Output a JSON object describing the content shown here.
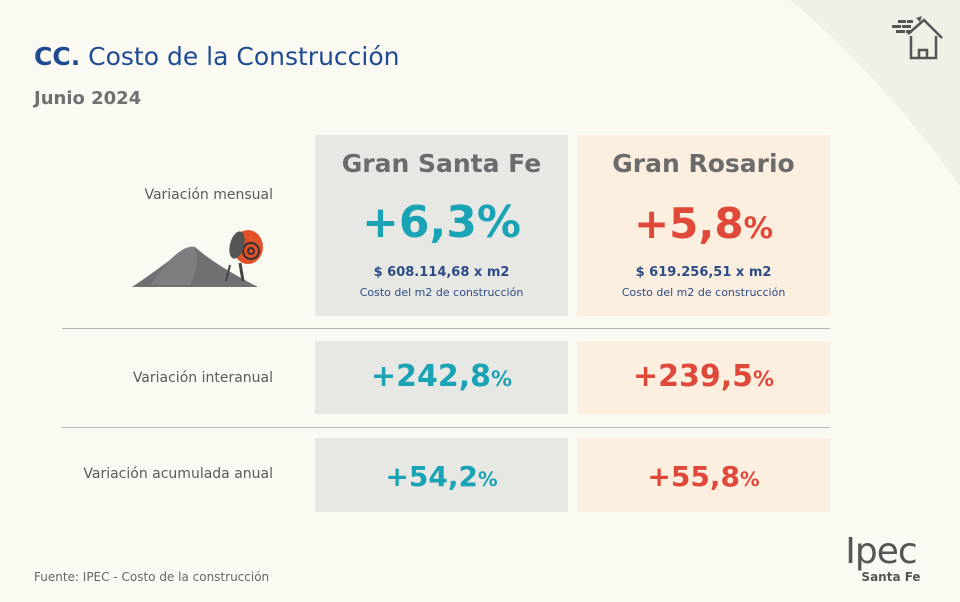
{
  "header": {
    "title_abbr": "CC.",
    "title": "Costo de la Construcción",
    "period": "Junio 2024",
    "icon": "house-brick-icon"
  },
  "columns": [
    {
      "name": "Gran Santa Fe",
      "color": "#1aa3b5"
    },
    {
      "name": "Gran Rosario",
      "color": "#e0483a"
    }
  ],
  "rows": [
    {
      "label": "Variación mensual",
      "santa_fe": "+6,3",
      "rosario": "+5,8",
      "unit": "%"
    },
    {
      "label": "Variación interanual",
      "santa_fe": "+242,8",
      "rosario": "+239,5",
      "unit": "%"
    },
    {
      "label": "Variación acumulada anual",
      "santa_fe": "+54,2",
      "rosario": "+55,8",
      "unit": "%"
    }
  ],
  "costs": {
    "santa_fe": "$ 608.114,68 x m2",
    "rosario": "$ 619.256,51 x m2",
    "caption": "Costo del m2 de construcción"
  },
  "footer": {
    "source": "Fuente: IPEC - Costo de la construcción",
    "logo": "Ipec",
    "logo_sub": "Santa Fe"
  }
}
